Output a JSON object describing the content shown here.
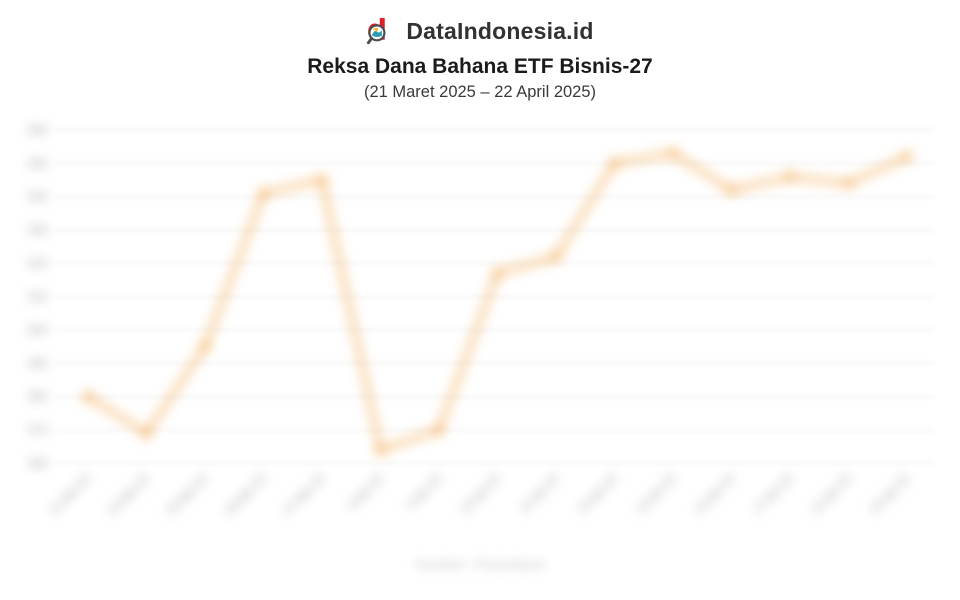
{
  "header": {
    "brand": "DataIndonesia.id",
    "brand_color": "#E21F26",
    "logo_icon": "magnifier-d-logo",
    "title": "Reksa Dana Bahana ETF Bisnis-27",
    "subtitle": "(21 Maret 2025 – 22 April 2025)"
  },
  "chart_data": {
    "type": "line",
    "title": "Reksa Dana Bahana ETF Bisnis-27",
    "x": [
      "21 Mar 25",
      "24 Mar 25",
      "25 Mar 25",
      "26 Mar 25",
      "27 Mar 25",
      "8 Apr 25",
      "9 Apr 25",
      "10 Apr 25",
      "11 Apr 25",
      "14 Apr 25",
      "15 Apr 25",
      "16 Apr 25",
      "17 Apr 25",
      "21 Apr 25",
      "22 Apr 25"
    ],
    "values": [
      580,
      569,
      595,
      641,
      645,
      564,
      570,
      617,
      622,
      650,
      653,
      642,
      646,
      644,
      652
    ],
    "ylim": [
      560,
      660
    ],
    "y_ticks": [
      560,
      570,
      580,
      590,
      600,
      610,
      620,
      630,
      640,
      650,
      660
    ],
    "xlabel": "",
    "ylabel": "",
    "grid": "horizontal",
    "legend": "none",
    "line_color": "#F2A64C",
    "marker": "circle"
  },
  "footer": {
    "source_text": "Sumber: Pasardana"
  }
}
